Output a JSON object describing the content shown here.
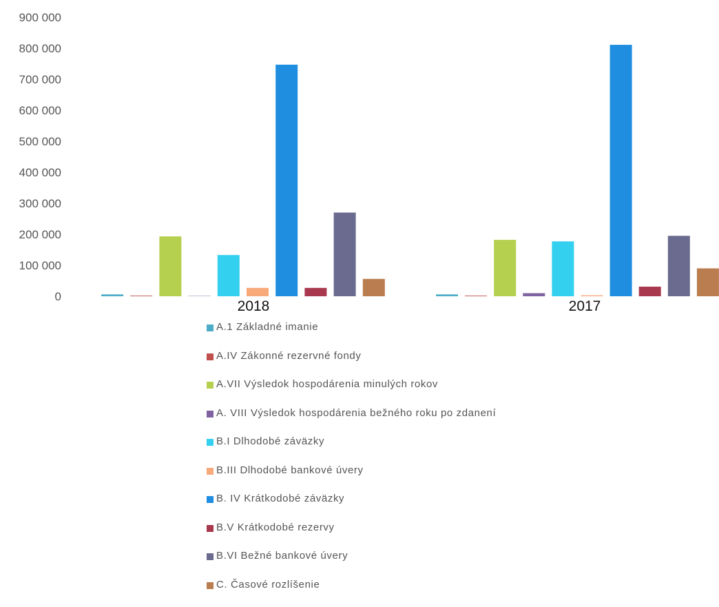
{
  "chart_data": {
    "type": "bar",
    "categories": [
      "2018",
      "2017"
    ],
    "ylim": [
      0,
      900000
    ],
    "y_ticks": [
      {
        "value": 0,
        "label": "0"
      },
      {
        "value": 100000,
        "label": "100 000"
      },
      {
        "value": 200000,
        "label": "200 000"
      },
      {
        "value": 300000,
        "label": "300 000"
      },
      {
        "value": 400000,
        "label": "400 000"
      },
      {
        "value": 500000,
        "label": "500 000"
      },
      {
        "value": 600000,
        "label": "600 000"
      },
      {
        "value": 700000,
        "label": "700 000"
      },
      {
        "value": 800000,
        "label": "800 000"
      },
      {
        "value": 900000,
        "label": "900 000"
      }
    ],
    "grid": false,
    "legend_position": "bottom",
    "series": [
      {
        "name": "A.1 Základné imanie",
        "color": "#4bacc6",
        "values": [
          6000,
          6000
        ]
      },
      {
        "name": "A.IV Zákonné rezervné fondy",
        "color": "#c0504d",
        "values": [
          2000,
          2000
        ]
      },
      {
        "name": "A.VII Výsledok hospodárenia minulých rokov",
        "color": "#b5cf4e",
        "values": [
          193000,
          182000
        ]
      },
      {
        "name": "A. VIII Výsledok hospodárenia bežného roku po zdanení",
        "color": "#8064a2",
        "values": [
          1000,
          10000
        ]
      },
      {
        "name": "B.I Dlhodobé záväzky",
        "color": "#33d0ef",
        "values": [
          133000,
          177000
        ]
      },
      {
        "name": "B.III Dlhodobé bankové úvery",
        "color": "#f7a97a",
        "values": [
          27000,
          3000
        ]
      },
      {
        "name": "B. IV Krátkodobé záväzky",
        "color": "#1f8ee0",
        "values": [
          747000,
          811000
        ]
      },
      {
        "name": "B.V Krátkodobé rezervy",
        "color": "#a8384e",
        "values": [
          27000,
          31000
        ]
      },
      {
        "name": "B.VI Bežné bankové úvery",
        "color": "#6b6b8f",
        "values": [
          270000,
          195000
        ]
      },
      {
        "name": "C. Časové rozlíšenie",
        "color": "#b97d4f",
        "values": [
          56000,
          90000
        ]
      }
    ]
  }
}
